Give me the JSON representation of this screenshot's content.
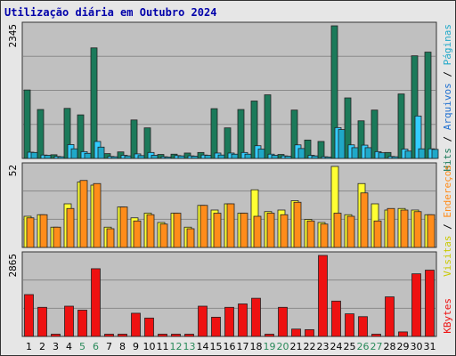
{
  "title": "Utilização diária em Outubro 2024",
  "colors": {
    "hits": "#1b7a5a",
    "files": "#33ccff",
    "pages": "#1fa8c8",
    "visits": "#ffff33",
    "sites": "#ff8c1a",
    "kbytes": "#ee1111",
    "weekend": "#2a8a5a",
    "weekday": "#000000",
    "panel": "#c0c0c0",
    "title": "#0000aa"
  },
  "right_labels": {
    "panel1": [
      {
        "text": "Hits",
        "color": "#1b7a5a"
      },
      {
        "text": " / ",
        "color": "#000000"
      },
      {
        "text": "Arquivos",
        "color": "#1e6fd0"
      },
      {
        "text": " / ",
        "color": "#000000"
      },
      {
        "text": "Páginas",
        "color": "#1fa8c8"
      }
    ],
    "panel2": [
      {
        "text": "Visitas",
        "color": "#c8c800"
      },
      {
        "text": " / ",
        "color": "#000000"
      },
      {
        "text": "Endereços",
        "color": "#ff8c1a"
      }
    ],
    "panel3": [
      {
        "text": "KBytes",
        "color": "#ee1111"
      }
    ]
  },
  "chart_data": [
    {
      "type": "bar",
      "panel": "hits-files-pages",
      "categories": [
        "1",
        "2",
        "3",
        "4",
        "5",
        "6",
        "7",
        "8",
        "9",
        "10",
        "11",
        "12",
        "13",
        "14",
        "15",
        "16",
        "17",
        "18",
        "19",
        "20",
        "21",
        "22",
        "23",
        "24",
        "25",
        "26",
        "27",
        "28",
        "29",
        "30",
        "31"
      ],
      "weekend_days": [
        "5",
        "6",
        "12",
        "13",
        "19",
        "20",
        "26",
        "27"
      ],
      "ymax_label": "2345",
      "ylim": [
        0,
        2345
      ],
      "series": [
        {
          "name": "Hits",
          "values": [
            1210,
            865,
            65,
            885,
            770,
            1955,
            85,
            115,
            680,
            540,
            70,
            75,
            95,
            105,
            880,
            540,
            865,
            1015,
            1125,
            70,
            855,
            325,
            300,
            2345,
            1070,
            665,
            855,
            105,
            1140,
            1815,
            1880
          ]
        },
        {
          "name": "Arquivos",
          "values": [
            110,
            60,
            35,
            245,
            120,
            300,
            35,
            55,
            80,
            105,
            30,
            50,
            45,
            60,
            95,
            95,
            105,
            225,
            75,
            45,
            240,
            55,
            30,
            545,
            240,
            235,
            120,
            35,
            165,
            750,
            170
          ]
        },
        {
          "name": "Páginas",
          "values": [
            105,
            55,
            30,
            170,
            90,
            200,
            30,
            45,
            50,
            55,
            25,
            45,
            40,
            55,
            60,
            75,
            75,
            165,
            55,
            40,
            175,
            45,
            25,
            510,
            190,
            190,
            100,
            30,
            130,
            170,
            160
          ]
        }
      ]
    },
    {
      "type": "bar",
      "panel": "visits-sites",
      "categories": [
        "1",
        "2",
        "3",
        "4",
        "5",
        "6",
        "7",
        "8",
        "9",
        "10",
        "11",
        "12",
        "13",
        "14",
        "15",
        "16",
        "17",
        "18",
        "19",
        "20",
        "21",
        "22",
        "23",
        "24",
        "25",
        "26",
        "27",
        "28",
        "29",
        "30",
        "31"
      ],
      "ymax_label": "52",
      "ylim": [
        0,
        52
      ],
      "series": [
        {
          "name": "Visitas",
          "values": [
            20,
            21,
            13,
            28,
            42,
            40,
            13,
            26,
            19,
            22,
            16,
            22,
            13,
            27,
            24,
            28,
            22,
            37,
            23,
            24,
            30,
            18,
            16,
            52,
            21,
            41,
            28,
            24,
            25,
            24,
            21
          ]
        },
        {
          "name": "Endereços",
          "values": [
            19,
            21,
            13,
            25,
            43,
            41,
            12,
            26,
            17,
            21,
            15,
            22,
            12,
            27,
            22,
            28,
            22,
            20,
            22,
            21,
            29,
            17,
            15,
            22,
            20,
            35,
            17,
            25,
            24,
            23,
            21
          ]
        }
      ]
    },
    {
      "type": "bar",
      "panel": "kbytes",
      "categories": [
        "1",
        "2",
        "3",
        "4",
        "5",
        "6",
        "7",
        "8",
        "9",
        "10",
        "11",
        "12",
        "13",
        "14",
        "15",
        "16",
        "17",
        "18",
        "19",
        "20",
        "21",
        "22",
        "23",
        "24",
        "25",
        "26",
        "27",
        "28",
        "29",
        "30",
        "31"
      ],
      "ymax_label": "2865",
      "ylim": [
        0,
        2865
      ],
      "series": [
        {
          "name": "KBytes",
          "values": [
            1480,
            1030,
            80,
            1070,
            930,
            2395,
            80,
            80,
            820,
            650,
            80,
            80,
            80,
            1070,
            680,
            1030,
            1150,
            1350,
            80,
            1030,
            260,
            240,
            2865,
            1250,
            800,
            700,
            80,
            1400,
            160,
            2215,
            2345
          ]
        }
      ]
    }
  ]
}
